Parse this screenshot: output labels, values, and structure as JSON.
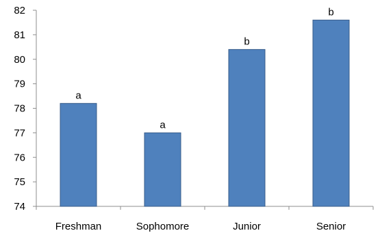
{
  "chart_data": {
    "type": "bar",
    "categories": [
      "Freshman",
      "Sophomore",
      "Junior",
      "Senior"
    ],
    "values": [
      78.2,
      77.0,
      80.4,
      81.6
    ],
    "data_labels": [
      "a",
      "a",
      "b",
      "b"
    ],
    "title": "",
    "xlabel": "",
    "ylabel": "",
    "ylim": [
      74,
      82
    ],
    "yticks": [
      74,
      75,
      76,
      77,
      78,
      79,
      80,
      81,
      82
    ],
    "grid": false,
    "legend": "none",
    "bar_color": "#4f81bd",
    "bar_edge_color": "#385d8a"
  }
}
